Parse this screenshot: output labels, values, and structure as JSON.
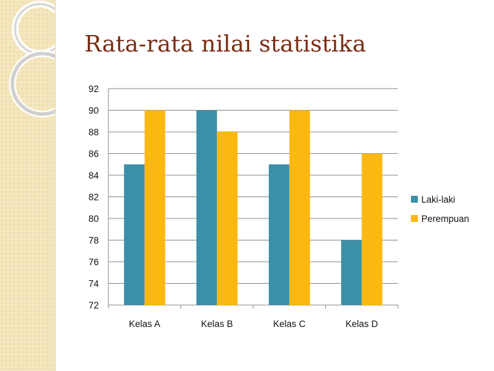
{
  "slide": {
    "title": "Rata-rata nilai statistika"
  },
  "colors": {
    "title": "#7a2c13",
    "side_band": "#f4e6bd",
    "ornament": "#d3d3d3"
  },
  "chart_data": {
    "type": "bar",
    "title": "",
    "xlabel": "",
    "ylabel": "",
    "categories": [
      "Kelas A",
      "Kelas B",
      "Kelas C",
      "Kelas D"
    ],
    "series": [
      {
        "name": "Laki-laki",
        "values": [
          85,
          90,
          85,
          78
        ],
        "color": "#3b8fa6"
      },
      {
        "name": "Perempuan",
        "values": [
          90,
          88,
          90,
          86
        ],
        "color": "#fbb811"
      }
    ],
    "ylim": [
      72,
      92
    ],
    "yticks": [
      "72",
      "74",
      "76",
      "78",
      "80",
      "82",
      "84",
      "86",
      "88",
      "90",
      "92"
    ],
    "grid": true,
    "legend_position": "right"
  }
}
